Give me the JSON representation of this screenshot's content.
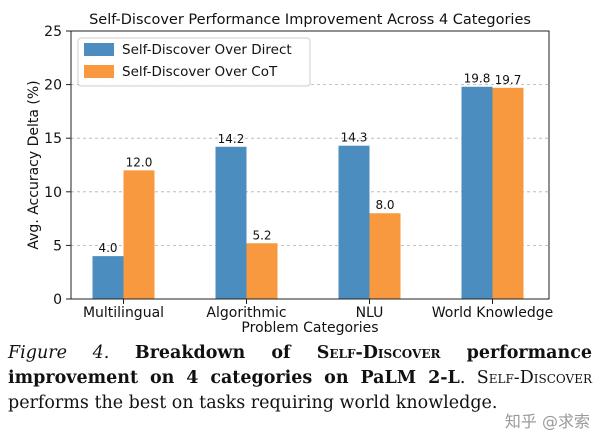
{
  "chart_data": {
    "type": "bar",
    "title": "Self-Discover Performance Improvement Across 4 Categories",
    "xlabel": "Problem Categories",
    "ylabel": "Avg. Accuracy Delta (%)",
    "categories": [
      "Multilingual",
      "Algorithmic",
      "NLU",
      "World Knowledge"
    ],
    "series": [
      {
        "name": "Self-Discover Over Direct",
        "values": [
          4.0,
          14.2,
          14.3,
          19.8
        ],
        "labels": [
          "4.0",
          "14.2",
          "14.3",
          "19.8"
        ],
        "color": "#4c8dbf"
      },
      {
        "name": "Self-Discover Over CoT",
        "values": [
          12.0,
          5.2,
          8.0,
          19.7
        ],
        "labels": [
          "12.0",
          "5.2",
          "8.0",
          "19.7"
        ],
        "color": "#f9993f"
      }
    ],
    "ylim": [
      0,
      25
    ],
    "yticks": [
      0,
      5,
      10,
      15,
      20,
      25
    ],
    "grid": "horizontal",
    "legend_position": "top-left"
  },
  "caption": {
    "figure_label": "Figure 4.",
    "bold_part_1": "Breakdown of ",
    "bold_sc_1": "Self-Discover",
    "bold_part_2": " performance improvement on 4 categories on PaLM 2-L",
    "plain_part_1": ". ",
    "sc_2": "Self-Discover",
    "plain_part_2": " performs the best on tasks requiring world knowledge."
  },
  "watermark": "知乎 @求索"
}
